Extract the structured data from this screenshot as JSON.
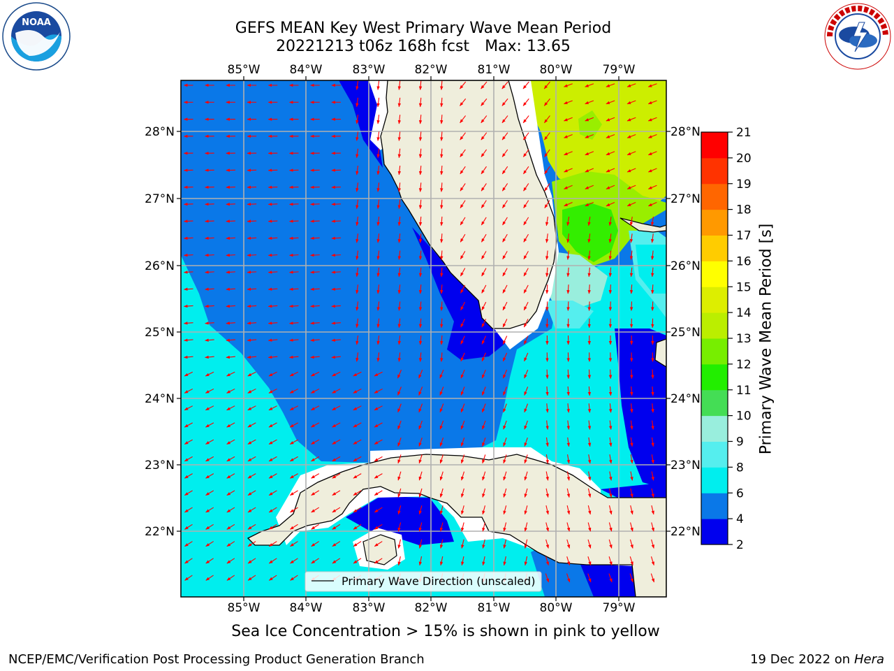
{
  "title": {
    "line1": "GEFS MEAN Key West Primary Wave Mean Period",
    "run": "20221213 t06z 168h fcst",
    "max": "Max: 13.65"
  },
  "axes": {
    "lon_ticks": [
      "85°W",
      "84°W",
      "83°W",
      "82°W",
      "81°W",
      "80°W",
      "79°W"
    ],
    "lat_ticks": [
      "28°N",
      "27°N",
      "26°N",
      "25°N",
      "24°N",
      "23°N",
      "22°N"
    ],
    "lon_range": [
      -86.0,
      -78.3
    ],
    "lat_range": [
      21.05,
      28.75
    ]
  },
  "legend": {
    "label": "Primary Wave Direction (unscaled)"
  },
  "colorbar": {
    "title": "Primary Wave Mean Period [s]",
    "ticks": [
      "2",
      "4",
      "6",
      "8",
      "9",
      "10",
      "11",
      "12",
      "13",
      "14",
      "15",
      "16",
      "17",
      "18",
      "19",
      "20",
      "21"
    ],
    "colors": [
      "#0000ee",
      "#0a78e8",
      "#00eeee",
      "#55eeee",
      "#99eedd",
      "#44dd55",
      "#22ee00",
      "#77ee00",
      "#bbee00",
      "#ddee00",
      "#ffff00",
      "#ffcc00",
      "#ff9900",
      "#ff6600",
      "#ff3300",
      "#ff0000"
    ]
  },
  "note": "Sea Ice Concentration > 15% is shown in pink to yellow",
  "footer": {
    "left": "NCEP/EMC/Verification Post Processing Product Generation Branch",
    "date": "19 Dec 2022 on",
    "machine": "Hera"
  },
  "logos": {
    "left": "NOAA",
    "right": "NATIONAL WEATHER SERVICE"
  },
  "colors": {
    "land": "#efeedc",
    "grid": "#b0b0b0",
    "arrow": "#ff0000"
  }
}
